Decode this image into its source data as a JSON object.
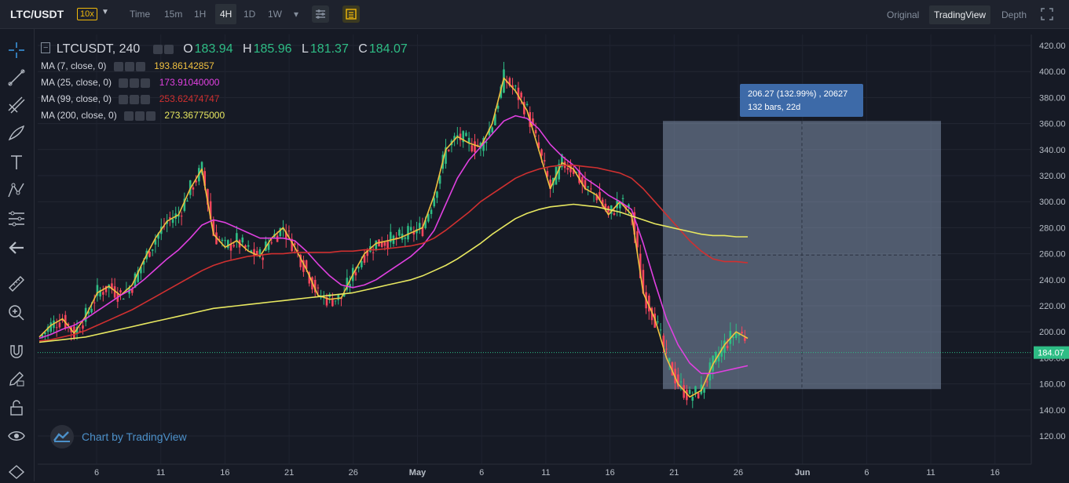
{
  "topbar": {
    "symbol": "LTC/USDT",
    "leverage": "10x",
    "timeframes": [
      "Time",
      "15m",
      "1H",
      "4H",
      "1D",
      "1W"
    ],
    "active_timeframe": "4H",
    "views": [
      "Original",
      "TradingView",
      "Depth"
    ],
    "active_view": "TradingView"
  },
  "legend": {
    "symbol": "LTCUSDT, 240",
    "o_label": "O",
    "o": "183.94",
    "h_label": "H",
    "h": "185.96",
    "l_label": "L",
    "l": "181.37",
    "c_label": "C",
    "c": "184.07",
    "ma": [
      {
        "label": "MA (7, close, 0)",
        "value": "193.86142857",
        "color": "#f0c040"
      },
      {
        "label": "MA (25, close, 0)",
        "value": "173.91040000",
        "color": "#e040e0"
      },
      {
        "label": "MA (99, close, 0)",
        "value": "253.62474747",
        "color": "#d03030"
      },
      {
        "label": "MA (200, close, 0)",
        "value": "273.36775000",
        "color": "#e8e860"
      }
    ]
  },
  "watermark": "Chart by TradingView",
  "measure": {
    "line1": "206.27 (132.99%) , 20627",
    "line2": "132 bars, 22d"
  },
  "current_price": "184.07",
  "colors": {
    "up": "#2ebd85",
    "down": "#f6465d",
    "ma7": "#f0c040",
    "ma25": "#e040e0",
    "ma99": "#d03030",
    "ma200": "#e8e860",
    "accent": "#f0b90b"
  },
  "chart_data": {
    "type": "line",
    "title": "LTCUSDT, 240",
    "ylim": [
      105,
      425
    ],
    "y_ticks": [
      "420.00",
      "400.00",
      "380.00",
      "360.00",
      "340.00",
      "320.00",
      "300.00",
      "280.00",
      "260.00",
      "240.00",
      "220.00",
      "200.00",
      "180.00",
      "160.00",
      "140.00",
      "120.00"
    ],
    "x_ticks": [
      "6",
      "11",
      "16",
      "21",
      "26",
      "May",
      "6",
      "11",
      "16",
      "21",
      "26",
      "Jun",
      "6",
      "11",
      "16"
    ],
    "price_line": 184.07,
    "measure_range": {
      "from": 156,
      "to": 362
    },
    "series": [
      {
        "name": "MA (7, close, 0)",
        "values": [
          196,
          205,
          210,
          199,
          212,
          230,
          235,
          228,
          236,
          255,
          272,
          285,
          290,
          310,
          325,
          275,
          265,
          270,
          262,
          258,
          272,
          280,
          265,
          248,
          228,
          225,
          226,
          244,
          260,
          268,
          270,
          272,
          276,
          280,
          305,
          340,
          350,
          345,
          342,
          360,
          395,
          385,
          370,
          340,
          310,
          330,
          325,
          310,
          305,
          290,
          300,
          290,
          230,
          210,
          180,
          160,
          150,
          155,
          175,
          190,
          200,
          195
        ]
      },
      {
        "name": "MA (25, close, 0)",
        "values": [
          195,
          198,
          202,
          205,
          210,
          216,
          222,
          228,
          233,
          240,
          248,
          256,
          263,
          272,
          282,
          286,
          284,
          280,
          276,
          272,
          272,
          272,
          270,
          262,
          252,
          243,
          236,
          234,
          236,
          240,
          246,
          252,
          258,
          266,
          278,
          298,
          318,
          332,
          342,
          352,
          362,
          366,
          364,
          356,
          344,
          335,
          328,
          318,
          312,
          305,
          300,
          294,
          268,
          238,
          210,
          190,
          176,
          168,
          168,
          170,
          172,
          174
        ]
      },
      {
        "name": "MA (99, close, 0)",
        "values": [
          193,
          194,
          196,
          198,
          201,
          205,
          209,
          213,
          217,
          222,
          227,
          232,
          237,
          242,
          247,
          251,
          254,
          256,
          258,
          259,
          260,
          260,
          261,
          261,
          261,
          261,
          262,
          262,
          263,
          263,
          264,
          265,
          266,
          268,
          272,
          278,
          285,
          292,
          300,
          306,
          312,
          318,
          322,
          325,
          327,
          328,
          328,
          327,
          326,
          324,
          322,
          318,
          310,
          300,
          290,
          280,
          270,
          262,
          256,
          254,
          254,
          253
        ]
      },
      {
        "name": "MA (200, close, 0)",
        "values": [
          192,
          193,
          194,
          195,
          196,
          198,
          200,
          202,
          204,
          206,
          208,
          210,
          212,
          214,
          216,
          218,
          219,
          220,
          221,
          222,
          223,
          224,
          225,
          226,
          227,
          228,
          229,
          230,
          232,
          234,
          236,
          238,
          240,
          243,
          247,
          251,
          256,
          262,
          268,
          275,
          281,
          287,
          291,
          294,
          296,
          297,
          298,
          297,
          296,
          294,
          292,
          289,
          286,
          283,
          281,
          279,
          277,
          275,
          274,
          274,
          273,
          273
        ]
      }
    ]
  }
}
